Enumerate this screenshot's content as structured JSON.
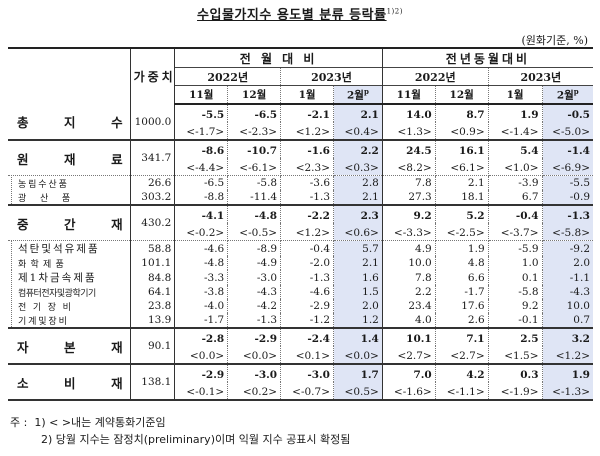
{
  "title": "수입물가지수 용도별 분류 등락률",
  "title_footnote_marks": "1)2)",
  "unit": "(원화기준, %)",
  "header": {
    "weight_label": "가중치",
    "group_mom": "전 월 대 비",
    "group_yoy": "전년동월대비",
    "years": [
      "2022년",
      "2023년",
      "2022년",
      "2023년"
    ],
    "months": [
      "11월",
      "12월",
      "1월",
      "2월",
      "11월",
      "12월",
      "1월",
      "2월"
    ],
    "preliminary_mark": "p"
  },
  "rows": [
    {
      "type": "major",
      "label": [
        "총",
        "지",
        "수"
      ],
      "weight": "1000.0",
      "values": [
        "-5.5",
        "-6.5",
        "-2.1",
        "2.1",
        "14.0",
        "8.7",
        "1.9",
        "-0.5"
      ],
      "contract": [
        "<-1.7>",
        "<-2.3>",
        "<1.2>",
        "<0.4>",
        "<1.3>",
        "<0.9>",
        "<-1.4>",
        "<-5.0>"
      ]
    },
    {
      "type": "major",
      "label": [
        "원",
        "재",
        "료"
      ],
      "weight": "341.7",
      "values": [
        "-8.6",
        "-10.7",
        "-1.6",
        "2.2",
        "24.5",
        "16.1",
        "5.4",
        "-1.4"
      ],
      "contract": [
        "<-4.4>",
        "<-6.1>",
        "<2.3>",
        "<0.3>",
        "<8.2>",
        "<6.1>",
        "<1.0>",
        "<-6.9>"
      ]
    },
    {
      "type": "minor",
      "label": "농 림 수 산 품",
      "weight": "26.6",
      "values": [
        "-6.5",
        "-5.8",
        "-3.6",
        "2.8",
        "7.8",
        "2.1",
        "-3.9",
        "-5.5"
      ]
    },
    {
      "type": "minor",
      "label": "광      산      품",
      "weight": "303.2",
      "values": [
        "-8.8",
        "-11.4",
        "-1.3",
        "2.1",
        "27.3",
        "18.1",
        "6.7",
        "-0.9"
      ]
    },
    {
      "type": "major",
      "label": [
        "중",
        "간",
        "재"
      ],
      "weight": "430.2",
      "values": [
        "-4.1",
        "-4.8",
        "-2.2",
        "2.3",
        "9.2",
        "5.2",
        "-0.4",
        "-1.3"
      ],
      "contract": [
        "<-0.2>",
        "<-0.5>",
        "<1.2>",
        "<0.6>",
        "<-3.3>",
        "<-2.5>",
        "<-3.7>",
        "<-5.8>"
      ]
    },
    {
      "type": "minor",
      "label": "석탄및석유제품",
      "weight": "58.8",
      "values": [
        "-4.6",
        "-8.9",
        "-0.4",
        "5.7",
        "4.9",
        "1.9",
        "-5.9",
        "-9.2"
      ]
    },
    {
      "type": "minor",
      "label": "화  학  제  품",
      "weight": "101.1",
      "values": [
        "-4.8",
        "-4.9",
        "-2.0",
        "2.1",
        "10.0",
        "4.8",
        "1.0",
        "2.0"
      ]
    },
    {
      "type": "minor",
      "label": "제1차금속제품",
      "weight": "84.8",
      "values": [
        "-3.3",
        "-3.0",
        "-1.3",
        "1.6",
        "7.8",
        "6.6",
        "0.1",
        "-1.1"
      ]
    },
    {
      "type": "minor",
      "label": "컴퓨터전자및광학기기",
      "weight": "64.1",
      "values": [
        "-3.8",
        "-4.3",
        "-4.6",
        "1.5",
        "2.2",
        "-1.7",
        "-5.8",
        "-4.3"
      ]
    },
    {
      "type": "minor",
      "label": "전   기   장   비",
      "weight": "23.8",
      "values": [
        "-4.0",
        "-4.2",
        "-2.9",
        "2.0",
        "23.4",
        "17.6",
        "9.2",
        "10.0"
      ]
    },
    {
      "type": "minor",
      "label": "기 계 및 장 비",
      "weight": "13.9",
      "values": [
        "-1.7",
        "-1.3",
        "-1.2",
        "1.2",
        "4.0",
        "2.6",
        "-0.1",
        "0.7"
      ]
    },
    {
      "type": "major",
      "label": [
        "자",
        "본",
        "재"
      ],
      "weight": "90.1",
      "values": [
        "-2.8",
        "-2.9",
        "-2.4",
        "1.4",
        "10.1",
        "7.1",
        "2.5",
        "3.2"
      ],
      "contract": [
        "<0.0>",
        "<0.0>",
        "<0.1>",
        "<0.0>",
        "<2.7>",
        "<2.7>",
        "<1.5>",
        "<1.2>"
      ]
    },
    {
      "type": "major",
      "label": [
        "소",
        "비",
        "재"
      ],
      "weight": "138.1",
      "values": [
        "-2.9",
        "-3.0",
        "-3.0",
        "1.7",
        "7.0",
        "4.2",
        "0.3",
        "1.9"
      ],
      "contract": [
        "<-0.1>",
        "<0.2>",
        "<-0.7>",
        "<0.5>",
        "<-1.6>",
        "<-1.1>",
        "<-1.9>",
        "<-1.3>"
      ]
    }
  ],
  "notes": {
    "prefix": "주 :",
    "note1": "1) < >내는 계약통화기준임",
    "note2": "2) 당월 지수는 잠정치(preliminary)이며 익월 지수 공표시 확정됨"
  },
  "colors": {
    "highlight": "#dfe5f5",
    "rule": "#222222"
  }
}
